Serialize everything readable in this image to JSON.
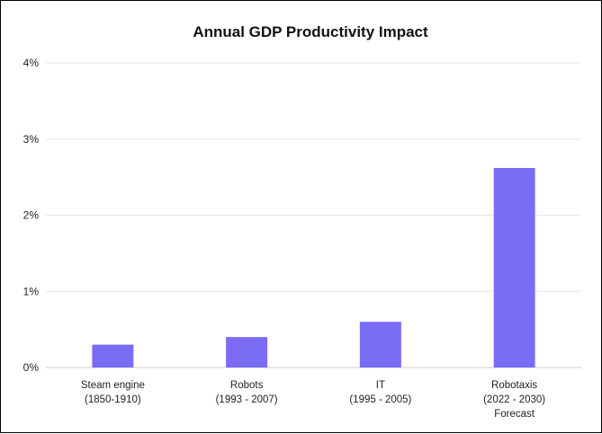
{
  "chart_data": {
    "type": "bar",
    "title": "Annual GDP Productivity Impact",
    "xlabel": "",
    "ylabel": "",
    "categories": [
      [
        "Steam engine",
        "(1850-1910)"
      ],
      [
        "Robots",
        "(1993 - 2007)"
      ],
      [
        "IT",
        "(1995 - 2005)"
      ],
      [
        "Robotaxis",
        "(2022 - 2030)",
        "Forecast"
      ]
    ],
    "values": [
      0.3,
      0.4,
      0.6,
      2.62
    ],
    "ylim": [
      0,
      4
    ],
    "yticks": [
      "0%",
      "1%",
      "2%",
      "3%",
      "4%"
    ],
    "grid": true,
    "legend": "none",
    "colors": {
      "bar": "#7b6cf6",
      "grid": "#e6e6e6",
      "axis": "#cccccc"
    }
  }
}
